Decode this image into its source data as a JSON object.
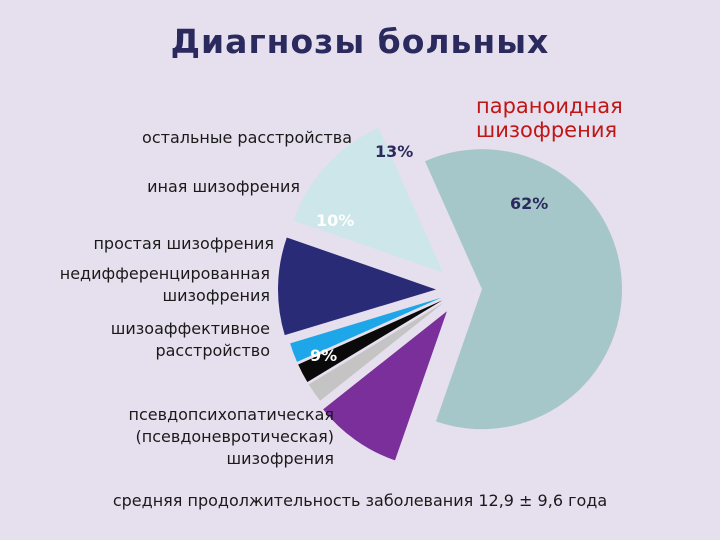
{
  "title": "Диагнозы больных",
  "footer": "средняя продолжительность заболевания 12,9 ± 9,6 года",
  "chart_data": {
    "type": "pie",
    "title": "Диагнозы больных",
    "slices": [
      {
        "label": "параноидная шизофрения",
        "value": 62,
        "value_label": "62%",
        "color": "#a5c7c9"
      },
      {
        "label": "психопатическая (псевдоневротическая) шизофрения",
        "value": 9,
        "value_label": "9%",
        "color": "#7a2f9a"
      },
      {
        "label": "шизоаффективное расстройство",
        "value": 2,
        "value_label": "",
        "color": "#c4c4c4"
      },
      {
        "label": "недифференцированная шизофрения",
        "value": 2,
        "value_label": "",
        "color": "#0a0a0a"
      },
      {
        "label": "простая шизофрения",
        "value": 2,
        "value_label": "",
        "color": "#1ea7e8"
      },
      {
        "label": "иная шизофрения",
        "value": 10,
        "value_label": "10%",
        "color": "#2a2b77"
      },
      {
        "label": "остальные расстройства",
        "value": 13,
        "value_label": "13%",
        "color": "#cce6ea"
      }
    ]
  },
  "labels": {
    "paranoid": "параноидная шизофрения",
    "other_disorders": "остальные расстройства",
    "other_schizo": "иная шизофрения",
    "simple": "простая шизофрения",
    "undiff_1": "недифференцированная",
    "undiff_2": "шизофрения",
    "schizoaff_1": "шизоаффективное",
    "schizoaff_2": "расстройство",
    "pseudo_1": "псевдопсихопатическая",
    "pseudo_2": "(псевдоневротическая)",
    "pseudo_3": "шизофрения"
  },
  "pct": {
    "p62": "62%",
    "p13": "13%",
    "p10": "10%",
    "p9": "9%"
  }
}
